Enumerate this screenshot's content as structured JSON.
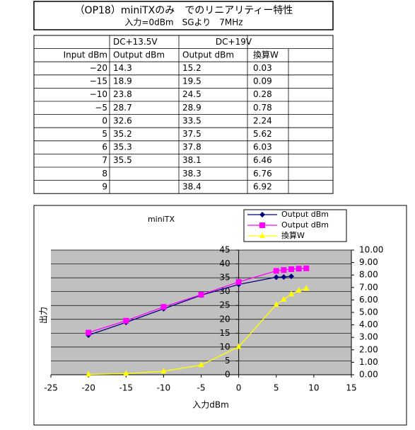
{
  "header": {
    "title": "（OP18）miniTXのみ　でのリニアリティー特性",
    "subtitle": "入力=0dBm　SGより　7MHz"
  },
  "table": {
    "group_row": [
      null,
      "DC+13.5V",
      "DC+19V"
    ],
    "columns": [
      "Input dBm",
      "Output dBm",
      "Output dBm",
      "換算W"
    ],
    "rows": [
      [
        "−20",
        "14.3",
        "15.2",
        "0.03"
      ],
      [
        "−15",
        "18.9",
        "19.5",
        "0.09"
      ],
      [
        "−10",
        "23.8",
        "24.5",
        "0.28"
      ],
      [
        "−5",
        "28.7",
        "28.9",
        "0.78"
      ],
      [
        "0",
        "32.6",
        "33.5",
        "2.24"
      ],
      [
        "5",
        "35.2",
        "37.5",
        "5.62"
      ],
      [
        "6",
        "35.3",
        "37.8",
        "6.03"
      ],
      [
        "7",
        "35.5",
        "38.1",
        "6.46"
      ],
      [
        "8",
        null,
        "38.3",
        "6.76"
      ],
      [
        "9",
        null,
        "38.4",
        "6.92"
      ]
    ]
  },
  "chart_data": {
    "type": "line",
    "title": "miniTX",
    "x_label": "入力dBm",
    "y_label": "出力",
    "x": [
      -20,
      -15,
      -10,
      -5,
      0,
      5,
      6,
      7,
      8,
      9
    ],
    "series": [
      {
        "name": "Output dBm",
        "color": "#000080",
        "marker": "diamond",
        "values": [
          14.3,
          18.9,
          23.8,
          28.7,
          32.6,
          35.2,
          35.3,
          35.5,
          null,
          null
        ]
      },
      {
        "name": "Output dBm",
        "color": "#ff00ff",
        "marker": "square",
        "values": [
          15.2,
          19.5,
          24.5,
          28.9,
          33.5,
          37.5,
          37.8,
          38.1,
          38.3,
          38.4
        ]
      },
      {
        "name": "換算W",
        "color": "#ffff00",
        "marker": "triangle",
        "axis": "y2",
        "values": [
          0.03,
          0.09,
          0.28,
          0.78,
          2.24,
          5.62,
          6.03,
          6.46,
          6.76,
          6.92
        ]
      }
    ],
    "xlim": [
      -25,
      15
    ],
    "xticks": [
      -25,
      -20,
      -15,
      -10,
      -5,
      0,
      5,
      10,
      15
    ],
    "ylim": [
      0,
      45
    ],
    "yticks": [
      0,
      5,
      10,
      15,
      20,
      25,
      30,
      35,
      40,
      45
    ],
    "y2lim": [
      0,
      10
    ],
    "y2ticks": [
      {
        "value": 0,
        "label": "0.00"
      },
      {
        "value": 1,
        "label": "1.00"
      },
      {
        "value": 2,
        "label": "2.00"
      },
      {
        "value": 3,
        "label": "3.00"
      },
      {
        "value": 4,
        "label": "4.00"
      },
      {
        "value": 5,
        "label": "5.00"
      },
      {
        "value": 6,
        "label": "6.00"
      },
      {
        "value": 7,
        "label": "7.00"
      },
      {
        "value": 8,
        "label": "8.00"
      },
      {
        "value": 9,
        "label": "9.00"
      },
      {
        "value": 10,
        "label": "10.00"
      }
    ],
    "grid": true,
    "legend": "top-right"
  }
}
